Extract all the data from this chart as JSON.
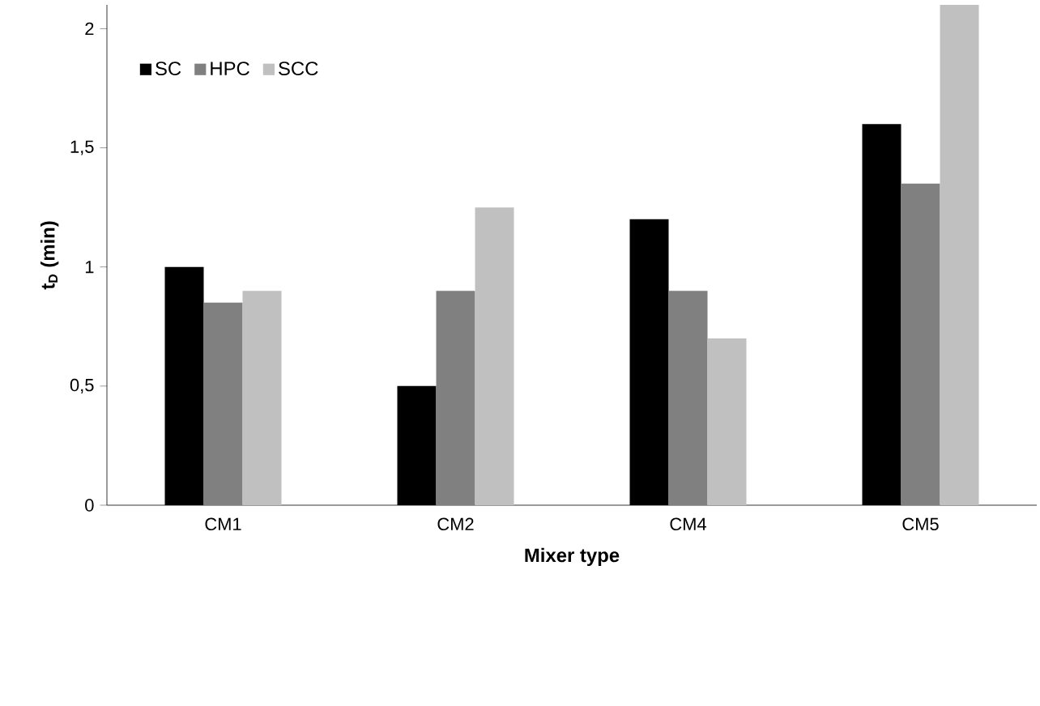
{
  "chart_data": {
    "type": "bar",
    "xlabel": "**Mixer type**",
    "ylabel": "**t$_{D}$ (min)**",
    "categories": [
      "CM1",
      "CM2",
      "CM4",
      "CM5"
    ],
    "series": [
      {
        "name": "SC",
        "color": "#000000",
        "values": [
          1.0,
          0.5,
          1.2,
          1.6
        ]
      },
      {
        "name": "HPC",
        "color": "#808080",
        "values": [
          0.85,
          0.9,
          0.9,
          1.35
        ]
      },
      {
        "name": "SCC",
        "color": "#c0c0c0",
        "values": [
          0.9,
          1.25,
          0.7,
          2.1
        ]
      }
    ],
    "ylim": [
      0,
      2.1
    ],
    "yticks": [
      0,
      {
        "value": 0.5,
        "label": "0,5"
      },
      1,
      {
        "value": 1.5,
        "label": "1,5"
      },
      2
    ],
    "legend": "top left"
  }
}
